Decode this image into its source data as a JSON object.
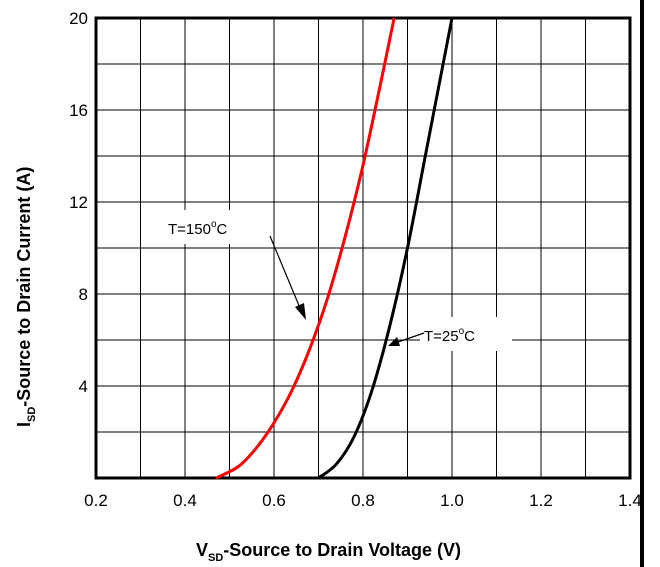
{
  "chart_data": {
    "type": "line",
    "xlabel_main": "V",
    "xlabel_sub": "SD",
    "xlabel_rest": "-Source to Drain Voltage (V)",
    "ylabel_main": "I",
    "ylabel_sub": "SD",
    "ylabel_rest": "-Source to Drain Current (A)",
    "xlim": [
      0.2,
      1.4
    ],
    "ylim": [
      0,
      20
    ],
    "x_ticks": [
      0.2,
      0.4,
      0.6,
      0.8,
      1.0,
      1.2,
      1.4
    ],
    "x_tick_labels": [
      "0.2",
      "0.4",
      "0.6",
      "0.8",
      "1.0",
      "1.2",
      "1.4"
    ],
    "y_ticks": [
      4,
      8,
      12,
      16,
      20
    ],
    "y_tick_labels": [
      "4",
      "8",
      "12",
      "16",
      "20"
    ],
    "grid": true,
    "series": [
      {
        "name": "T=150°C",
        "color": "#ff0000",
        "x": [
          0.47,
          0.52,
          0.56,
          0.6,
          0.64,
          0.68,
          0.72,
          0.76,
          0.8,
          0.84,
          0.87
        ],
        "y": [
          0.0,
          0.5,
          1.3,
          2.4,
          3.8,
          5.6,
          7.8,
          10.5,
          13.6,
          17.2,
          20.0
        ]
      },
      {
        "name": "T=25°C",
        "color": "#000000",
        "x": [
          0.7,
          0.74,
          0.78,
          0.82,
          0.86,
          0.9,
          0.94,
          0.98,
          1.0
        ],
        "y": [
          0.0,
          0.6,
          1.8,
          3.8,
          6.6,
          10.0,
          14.0,
          18.0,
          20.0
        ]
      }
    ],
    "annotations": [
      {
        "text": "T=150",
        "unit": "C",
        "degree": "o",
        "series_index": 0
      },
      {
        "text": "T=25",
        "unit": "C",
        "degree": "o",
        "series_index": 1
      }
    ]
  }
}
